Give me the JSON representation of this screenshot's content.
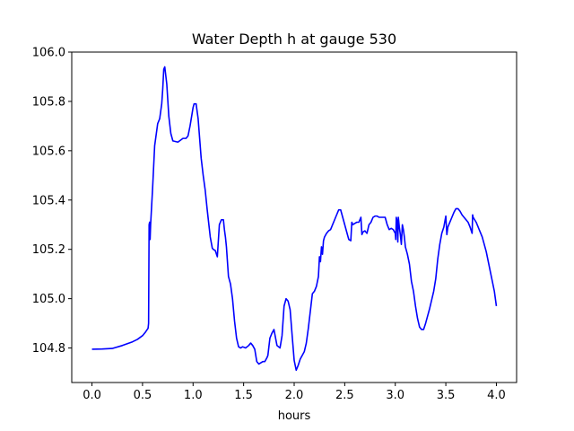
{
  "chart_data": {
    "type": "line",
    "title": "Water Depth h at gauge 530",
    "xlabel": "hours",
    "ylabel": "",
    "xlim": [
      -0.2,
      4.2
    ],
    "ylim": [
      104.66,
      106.0
    ],
    "xticks": [
      0.0,
      0.5,
      1.0,
      1.5,
      2.0,
      2.5,
      3.0,
      3.5,
      4.0
    ],
    "xtick_labels": [
      "0.0",
      "0.5",
      "1.0",
      "1.5",
      "2.0",
      "2.5",
      "3.0",
      "3.5",
      "4.0"
    ],
    "yticks": [
      104.8,
      105.0,
      105.2,
      105.4,
      105.6,
      105.8,
      106.0
    ],
    "ytick_labels": [
      "104.8",
      "105.0",
      "105.2",
      "105.4",
      "105.6",
      "105.8",
      "106.0"
    ],
    "grid": false,
    "series": [
      {
        "color": "#0000ff",
        "x": [
          0.0,
          0.1,
          0.2,
          0.3,
          0.4,
          0.45,
          0.5,
          0.53,
          0.555,
          0.56,
          0.565,
          0.57,
          0.575,
          0.58,
          0.6,
          0.62,
          0.65,
          0.67,
          0.69,
          0.7,
          0.71,
          0.72,
          0.74,
          0.76,
          0.78,
          0.8,
          0.85,
          0.9,
          0.93,
          0.95,
          0.97,
          0.99,
          1.0,
          1.01,
          1.03,
          1.05,
          1.08,
          1.1,
          1.12,
          1.14,
          1.17,
          1.19,
          1.2,
          1.22,
          1.24,
          1.26,
          1.28,
          1.3,
          1.31,
          1.32,
          1.33,
          1.35,
          1.37,
          1.39,
          1.41,
          1.43,
          1.45,
          1.47,
          1.49,
          1.52,
          1.55,
          1.57,
          1.59,
          1.61,
          1.63,
          1.65,
          1.67,
          1.69,
          1.71,
          1.73,
          1.74,
          1.76,
          1.78,
          1.8,
          1.83,
          1.86,
          1.88,
          1.9,
          1.92,
          1.94,
          1.96,
          1.98,
          2.0,
          2.02,
          2.04,
          2.06,
          2.08,
          2.1,
          2.12,
          2.14,
          2.16,
          2.18,
          2.2,
          2.22,
          2.24,
          2.25,
          2.26,
          2.27,
          2.28,
          2.29,
          2.3,
          2.32,
          2.34,
          2.36,
          2.38,
          2.4,
          2.42,
          2.44,
          2.46,
          2.48,
          2.5,
          2.52,
          2.54,
          2.56,
          2.57,
          2.58,
          2.6,
          2.62,
          2.64,
          2.66,
          2.67,
          2.68,
          2.7,
          2.72,
          2.74,
          2.76,
          2.78,
          2.8,
          2.82,
          2.84,
          2.86,
          2.88,
          2.9,
          2.92,
          2.94,
          2.96,
          2.98,
          3.0,
          3.005,
          3.01,
          3.02,
          3.025,
          3.03,
          3.04,
          3.05,
          3.06,
          3.07,
          3.08,
          3.09,
          3.1,
          3.12,
          3.14,
          3.16,
          3.18,
          3.2,
          3.22,
          3.24,
          3.26,
          3.28,
          3.3,
          3.32,
          3.34,
          3.36,
          3.38,
          3.4,
          3.42,
          3.44,
          3.46,
          3.48,
          3.5,
          3.51,
          3.52,
          3.54,
          3.56,
          3.58,
          3.6,
          3.62,
          3.64,
          3.66,
          3.68,
          3.7,
          3.72,
          3.74,
          3.76,
          3.765,
          3.77,
          3.8,
          3.82,
          3.84,
          3.86,
          3.88,
          3.9,
          3.92,
          3.94,
          3.96,
          3.965,
          3.97,
          3.98,
          4.0
        ],
        "y": [
          104.795,
          104.796,
          104.798,
          104.81,
          104.825,
          104.835,
          104.85,
          104.865,
          104.88,
          104.9,
          105.3,
          105.31,
          105.24,
          105.3,
          105.45,
          105.62,
          105.71,
          105.73,
          105.79,
          105.85,
          105.93,
          105.94,
          105.87,
          105.74,
          105.67,
          105.64,
          105.635,
          105.65,
          105.65,
          105.66,
          105.7,
          105.75,
          105.775,
          105.79,
          105.79,
          105.73,
          105.57,
          105.5,
          105.44,
          105.36,
          105.25,
          105.205,
          105.2,
          105.195,
          105.17,
          105.3,
          105.32,
          105.32,
          105.28,
          105.25,
          105.21,
          105.09,
          105.06,
          105.0,
          104.91,
          104.84,
          104.805,
          104.8,
          104.805,
          104.8,
          104.81,
          104.82,
          104.81,
          104.795,
          104.745,
          104.735,
          104.74,
          104.745,
          104.745,
          104.76,
          104.77,
          104.84,
          104.86,
          104.875,
          104.81,
          104.8,
          104.85,
          104.97,
          105.0,
          104.99,
          104.955,
          104.85,
          104.75,
          104.71,
          104.73,
          104.755,
          104.77,
          104.785,
          104.82,
          104.88,
          104.95,
          105.02,
          105.03,
          105.05,
          105.09,
          105.17,
          105.15,
          105.21,
          105.18,
          105.235,
          105.25,
          105.265,
          105.275,
          105.28,
          105.3,
          105.32,
          105.34,
          105.36,
          105.36,
          105.33,
          105.3,
          105.27,
          105.24,
          105.235,
          105.31,
          105.3,
          105.305,
          105.31,
          105.31,
          105.33,
          105.26,
          105.27,
          105.275,
          105.265,
          105.3,
          105.31,
          105.33,
          105.335,
          105.335,
          105.33,
          105.33,
          105.33,
          105.33,
          105.3,
          105.28,
          105.285,
          105.28,
          105.265,
          105.24,
          105.33,
          105.31,
          105.23,
          105.33,
          105.29,
          105.26,
          105.22,
          105.3,
          105.28,
          105.25,
          105.21,
          105.18,
          105.14,
          105.07,
          105.03,
          104.97,
          104.92,
          104.885,
          104.875,
          104.875,
          104.9,
          104.93,
          104.96,
          104.995,
          105.03,
          105.08,
          105.16,
          105.22,
          105.265,
          105.29,
          105.335,
          105.26,
          105.29,
          105.31,
          105.33,
          105.35,
          105.365,
          105.365,
          105.355,
          105.34,
          105.33,
          105.32,
          105.31,
          105.29,
          105.265,
          105.34,
          105.33,
          105.31,
          105.29,
          105.27,
          105.25,
          105.22,
          105.19,
          105.15,
          105.11,
          105.07,
          105.06,
          105.05,
          105.03,
          104.97
        ]
      }
    ]
  }
}
